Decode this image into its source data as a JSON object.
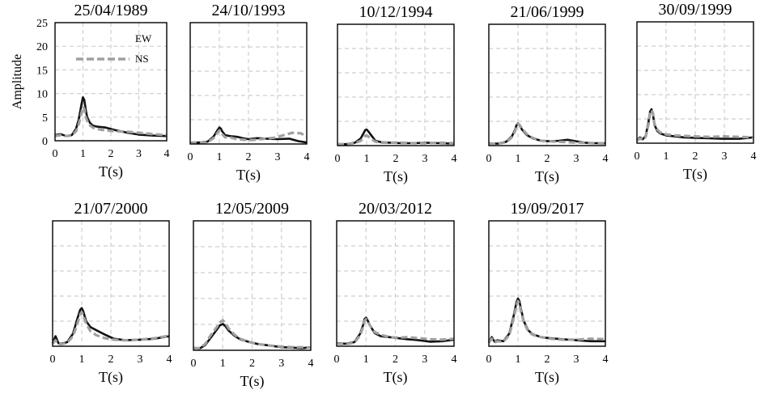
{
  "colors": {
    "EW": "#111111",
    "NS": "#a0a0a0",
    "grid": "#cfcfcf"
  },
  "chart_data": [
    {
      "type": "line",
      "title": "25/04/1989",
      "xlabel": "T(s)",
      "ylabel": "Amplitude",
      "xlim": [
        0,
        4
      ],
      "ylim": [
        0,
        25
      ],
      "xticks": [
        "0",
        "1",
        "2",
        "3",
        "4"
      ],
      "yticks": [
        "0",
        "5",
        "10",
        "15",
        "20",
        "25"
      ],
      "grid": true,
      "legend": {
        "placement": "top-left",
        "entries": [
          "EW",
          "NS"
        ]
      },
      "series": [
        {
          "name": "EW",
          "style": "solid",
          "x": [
            0,
            0.2,
            0.4,
            0.6,
            0.75,
            0.85,
            0.95,
            1.0,
            1.05,
            1.1,
            1.15,
            1.25,
            1.35,
            1.5,
            1.8,
            2.2,
            2.6,
            3.0,
            3.5,
            4.0
          ],
          "y": [
            1.2,
            1.4,
            1.0,
            1.2,
            2.5,
            4.5,
            7.8,
            9.2,
            8.6,
            6.5,
            5.0,
            3.8,
            3.2,
            3.0,
            2.8,
            2.2,
            1.7,
            1.3,
            1.1,
            1.0
          ]
        },
        {
          "name": "NS",
          "style": "dashed",
          "x": [
            0,
            0.2,
            0.4,
            0.6,
            0.75,
            0.85,
            0.95,
            1.0,
            1.05,
            1.1,
            1.2,
            1.35,
            1.5,
            1.8,
            2.2,
            2.6,
            3.0,
            3.5,
            4.0
          ],
          "y": [
            1.0,
            1.2,
            1.0,
            1.1,
            2.0,
            3.5,
            6.0,
            7.2,
            6.8,
            5.0,
            3.5,
            2.8,
            2.5,
            2.2,
            2.0,
            1.9,
            1.7,
            1.4,
            1.2
          ]
        }
      ]
    },
    {
      "type": "line",
      "title": "24/10/1993",
      "xlabel": "T(s)",
      "xlim": [
        0,
        4
      ],
      "ylim": [
        0,
        25
      ],
      "xticks": [
        "0",
        "1",
        "2",
        "3",
        "4"
      ],
      "grid": true,
      "series": [
        {
          "name": "EW",
          "style": "solid",
          "x": [
            0,
            0.3,
            0.6,
            0.8,
            0.9,
            1.0,
            1.05,
            1.1,
            1.2,
            1.4,
            1.6,
            1.8,
            2.0,
            2.3,
            2.6,
            3.0,
            3.4,
            3.7,
            4.0
          ],
          "y": [
            0.3,
            0.3,
            0.5,
            1.5,
            2.5,
            3.4,
            3.2,
            2.6,
            1.8,
            1.6,
            1.5,
            1.2,
            1.0,
            1.2,
            1.1,
            1.0,
            1.1,
            0.6,
            0.3
          ]
        },
        {
          "name": "NS",
          "style": "dashed",
          "x": [
            0,
            0.3,
            0.6,
            0.8,
            0.9,
            1.0,
            1.05,
            1.1,
            1.2,
            1.4,
            1.6,
            1.8,
            2.0,
            2.3,
            2.6,
            2.9,
            3.2,
            3.5,
            3.8,
            4.0
          ],
          "y": [
            0.2,
            0.3,
            0.4,
            1.2,
            2.0,
            2.8,
            2.6,
            2.0,
            1.4,
            1.3,
            1.0,
            0.9,
            0.8,
            0.9,
            1.1,
            1.3,
            1.8,
            2.3,
            2.2,
            1.5
          ]
        }
      ]
    },
    {
      "type": "line",
      "title": "10/12/1994",
      "xlabel": "T(s)",
      "xlim": [
        0,
        4
      ],
      "ylim": [
        0,
        25
      ],
      "xticks": [
        "0",
        "1",
        "2",
        "3",
        "4"
      ],
      "grid": true,
      "series": [
        {
          "name": "EW",
          "style": "solid",
          "x": [
            0,
            0.3,
            0.6,
            0.8,
            0.9,
            0.95,
            1.0,
            1.05,
            1.15,
            1.3,
            1.5,
            1.8,
            2.2,
            2.6,
            3.0,
            3.5,
            4.0
          ],
          "y": [
            0.3,
            0.3,
            0.6,
            1.5,
            2.6,
            3.2,
            3.3,
            3.0,
            2.2,
            1.0,
            0.7,
            0.6,
            0.5,
            0.5,
            0.6,
            0.5,
            0.4
          ]
        },
        {
          "name": "NS",
          "style": "dashed",
          "x": [
            0,
            0.3,
            0.6,
            0.8,
            0.9,
            0.95,
            1.0,
            1.05,
            1.15,
            1.3,
            1.5,
            1.8,
            2.2,
            2.6,
            3.0,
            3.5,
            4.0
          ],
          "y": [
            0.3,
            0.3,
            0.5,
            1.0,
            1.6,
            2.0,
            2.1,
            1.9,
            1.4,
            0.8,
            0.6,
            0.6,
            0.6,
            0.5,
            0.5,
            0.6,
            0.5
          ]
        }
      ]
    },
    {
      "type": "line",
      "title": "21/06/1999",
      "xlabel": "T(s)",
      "xlim": [
        0,
        4
      ],
      "ylim": [
        0,
        25
      ],
      "xticks": [
        "0",
        "1",
        "2",
        "3",
        "4"
      ],
      "grid": true,
      "series": [
        {
          "name": "EW",
          "style": "solid",
          "x": [
            0,
            0.3,
            0.6,
            0.8,
            0.9,
            0.95,
            1.0,
            1.05,
            1.15,
            1.3,
            1.5,
            1.8,
            2.1,
            2.4,
            2.7,
            3.0,
            3.3,
            3.6,
            4.0
          ],
          "y": [
            0.5,
            0.4,
            0.8,
            2.0,
            3.3,
            4.2,
            4.6,
            4.2,
            3.2,
            2.2,
            1.5,
            1.0,
            0.9,
            1.0,
            1.2,
            0.9,
            0.6,
            0.5,
            0.5
          ]
        },
        {
          "name": "NS",
          "style": "dashed",
          "x": [
            0,
            0.3,
            0.6,
            0.8,
            0.9,
            0.95,
            1.0,
            1.05,
            1.15,
            1.3,
            1.5,
            1.8,
            2.1,
            2.4,
            2.7,
            3.0,
            3.3,
            3.6,
            4.0
          ],
          "y": [
            0.4,
            0.4,
            0.7,
            1.8,
            3.0,
            4.0,
            4.5,
            4.3,
            3.4,
            2.4,
            1.6,
            1.0,
            0.9,
            0.8,
            0.7,
            0.6,
            0.6,
            0.5,
            0.4
          ]
        }
      ]
    },
    {
      "type": "line",
      "title": "30/09/1999",
      "xlabel": "T(s)",
      "xlim": [
        0,
        4
      ],
      "ylim": [
        0,
        25
      ],
      "xticks": [
        "0",
        "1",
        "2",
        "3",
        "4"
      ],
      "grid": true,
      "series": [
        {
          "name": "EW",
          "style": "solid",
          "x": [
            0,
            0.1,
            0.2,
            0.3,
            0.4,
            0.45,
            0.5,
            0.55,
            0.6,
            0.7,
            0.8,
            1.0,
            1.3,
            1.6,
            2.0,
            2.5,
            3.0,
            3.5,
            4.0
          ],
          "y": [
            0.6,
            1.2,
            0.8,
            1.5,
            4.5,
            6.5,
            7.0,
            6.0,
            3.8,
            2.5,
            2.0,
            1.6,
            1.4,
            1.2,
            1.1,
            1.0,
            0.9,
            0.9,
            1.2
          ]
        },
        {
          "name": "NS",
          "style": "dashed",
          "x": [
            0,
            0.1,
            0.2,
            0.3,
            0.4,
            0.45,
            0.5,
            0.55,
            0.6,
            0.7,
            0.8,
            1.0,
            1.3,
            1.6,
            2.0,
            2.5,
            3.0,
            3.5,
            4.0
          ],
          "y": [
            0.5,
            1.0,
            0.7,
            1.3,
            4.0,
            6.2,
            6.8,
            6.2,
            4.0,
            2.8,
            2.2,
            1.8,
            1.6,
            1.5,
            1.4,
            1.3,
            1.4,
            1.3,
            1.2
          ]
        }
      ]
    },
    {
      "type": "line",
      "title": "21/07/2000",
      "xlabel": "T(s)",
      "xlim": [
        0,
        4
      ],
      "ylim": [
        0,
        25
      ],
      "xticks": [
        "0",
        "1",
        "2",
        "3",
        "4"
      ],
      "grid": true,
      "series": [
        {
          "name": "EW",
          "style": "solid",
          "x": [
            0,
            0.1,
            0.2,
            0.3,
            0.5,
            0.7,
            0.85,
            0.95,
            1.0,
            1.05,
            1.15,
            1.3,
            1.5,
            1.8,
            2.1,
            2.5,
            3.0,
            3.5,
            4.0
          ],
          "y": [
            0.6,
            2.0,
            0.6,
            0.5,
            0.8,
            2.5,
            5.5,
            7.3,
            7.6,
            7.0,
            5.0,
            3.8,
            3.2,
            2.3,
            1.5,
            1.2,
            1.3,
            1.5,
            2.0
          ]
        },
        {
          "name": "NS",
          "style": "dashed",
          "x": [
            0,
            0.1,
            0.2,
            0.3,
            0.5,
            0.7,
            0.85,
            0.95,
            1.0,
            1.05,
            1.15,
            1.3,
            1.5,
            1.8,
            2.1,
            2.5,
            3.0,
            3.5,
            4.0
          ],
          "y": [
            0.5,
            1.2,
            0.5,
            0.4,
            0.7,
            2.0,
            4.5,
            6.4,
            6.8,
            6.2,
            4.5,
            3.0,
            2.2,
            1.6,
            1.3,
            1.2,
            1.3,
            1.6,
            2.1
          ]
        }
      ]
    },
    {
      "type": "line",
      "title": "12/05/2009",
      "xlabel": "T(s)",
      "xlim": [
        0,
        4
      ],
      "ylim": [
        0,
        25
      ],
      "xticks": [
        "0",
        "1",
        "2",
        "3",
        "4"
      ],
      "grid": true,
      "series": [
        {
          "name": "EW",
          "style": "solid",
          "x": [
            0,
            0.2,
            0.4,
            0.6,
            0.8,
            0.9,
            1.0,
            1.1,
            1.2,
            1.4,
            1.6,
            1.9,
            2.2,
            2.6,
            3.0,
            3.4,
            3.7,
            4.0
          ],
          "y": [
            0.5,
            0.3,
            1.0,
            2.5,
            4.0,
            4.8,
            5.1,
            4.6,
            3.8,
            2.8,
            2.1,
            1.6,
            1.2,
            0.9,
            0.6,
            0.5,
            0.4,
            0.6
          ]
        },
        {
          "name": "NS",
          "style": "dashed",
          "x": [
            0,
            0.2,
            0.4,
            0.6,
            0.8,
            0.9,
            1.0,
            1.1,
            1.2,
            1.4,
            1.6,
            1.9,
            2.2,
            2.6,
            3.0,
            3.4,
            3.7,
            4.0
          ],
          "y": [
            0.4,
            0.4,
            1.2,
            3.0,
            4.5,
            5.4,
            5.8,
            5.2,
            4.2,
            3.0,
            2.2,
            1.6,
            1.2,
            0.9,
            0.7,
            0.6,
            0.6,
            0.5
          ]
        }
      ]
    },
    {
      "type": "line",
      "title": "20/03/2012",
      "xlabel": "T(s)",
      "xlim": [
        0,
        4
      ],
      "ylim": [
        0,
        25
      ],
      "xticks": [
        "0",
        "1",
        "2",
        "3",
        "4"
      ],
      "grid": true,
      "series": [
        {
          "name": "EW",
          "style": "solid",
          "x": [
            0,
            0.3,
            0.6,
            0.8,
            0.9,
            0.95,
            1.0,
            1.05,
            1.15,
            1.3,
            1.5,
            1.8,
            2.1,
            2.4,
            2.8,
            3.2,
            3.6,
            4.0
          ],
          "y": [
            0.6,
            0.5,
            0.8,
            2.5,
            4.2,
            5.4,
            5.7,
            5.2,
            4.0,
            2.6,
            2.0,
            1.8,
            1.6,
            1.4,
            1.2,
            0.9,
            1.0,
            1.3
          ]
        },
        {
          "name": "NS",
          "style": "dashed",
          "x": [
            0,
            0.3,
            0.6,
            0.8,
            0.9,
            0.95,
            1.0,
            1.05,
            1.15,
            1.3,
            1.5,
            1.8,
            2.1,
            2.4,
            2.8,
            3.2,
            3.6,
            4.0
          ],
          "y": [
            0.5,
            0.4,
            0.7,
            2.2,
            3.8,
            5.0,
            5.4,
            5.0,
            4.0,
            2.8,
            2.3,
            1.8,
            1.7,
            1.8,
            1.6,
            1.4,
            1.3,
            1.5
          ]
        }
      ]
    },
    {
      "type": "line",
      "title": "19/09/2017",
      "xlabel": "T(s)",
      "xlim": [
        0,
        4
      ],
      "ylim": [
        0,
        25
      ],
      "xticks": [
        "0",
        "1",
        "2",
        "3",
        "4"
      ],
      "grid": true,
      "series": [
        {
          "name": "EW",
          "style": "solid",
          "x": [
            0,
            0.1,
            0.2,
            0.3,
            0.5,
            0.7,
            0.85,
            0.95,
            1.0,
            1.05,
            1.1,
            1.2,
            1.35,
            1.5,
            1.8,
            2.1,
            2.5,
            3.0,
            3.5,
            4.0
          ],
          "y": [
            0.8,
            1.8,
            0.9,
            1.2,
            1.0,
            2.5,
            6.0,
            8.8,
            9.5,
            9.0,
            7.5,
            5.0,
            3.2,
            2.4,
            1.8,
            1.6,
            1.4,
            1.2,
            1.0,
            1.0
          ]
        },
        {
          "name": "NS",
          "style": "dashed",
          "x": [
            0,
            0.1,
            0.2,
            0.3,
            0.5,
            0.7,
            0.85,
            0.95,
            1.0,
            1.05,
            1.1,
            1.2,
            1.35,
            1.5,
            1.8,
            2.1,
            2.5,
            3.0,
            3.5,
            4.0
          ],
          "y": [
            0.7,
            1.5,
            0.8,
            1.0,
            0.9,
            2.2,
            5.5,
            8.2,
            9.0,
            8.5,
            7.0,
            4.8,
            3.0,
            2.3,
            1.8,
            1.5,
            1.3,
            1.3,
            1.5,
            1.4
          ]
        }
      ]
    }
  ]
}
